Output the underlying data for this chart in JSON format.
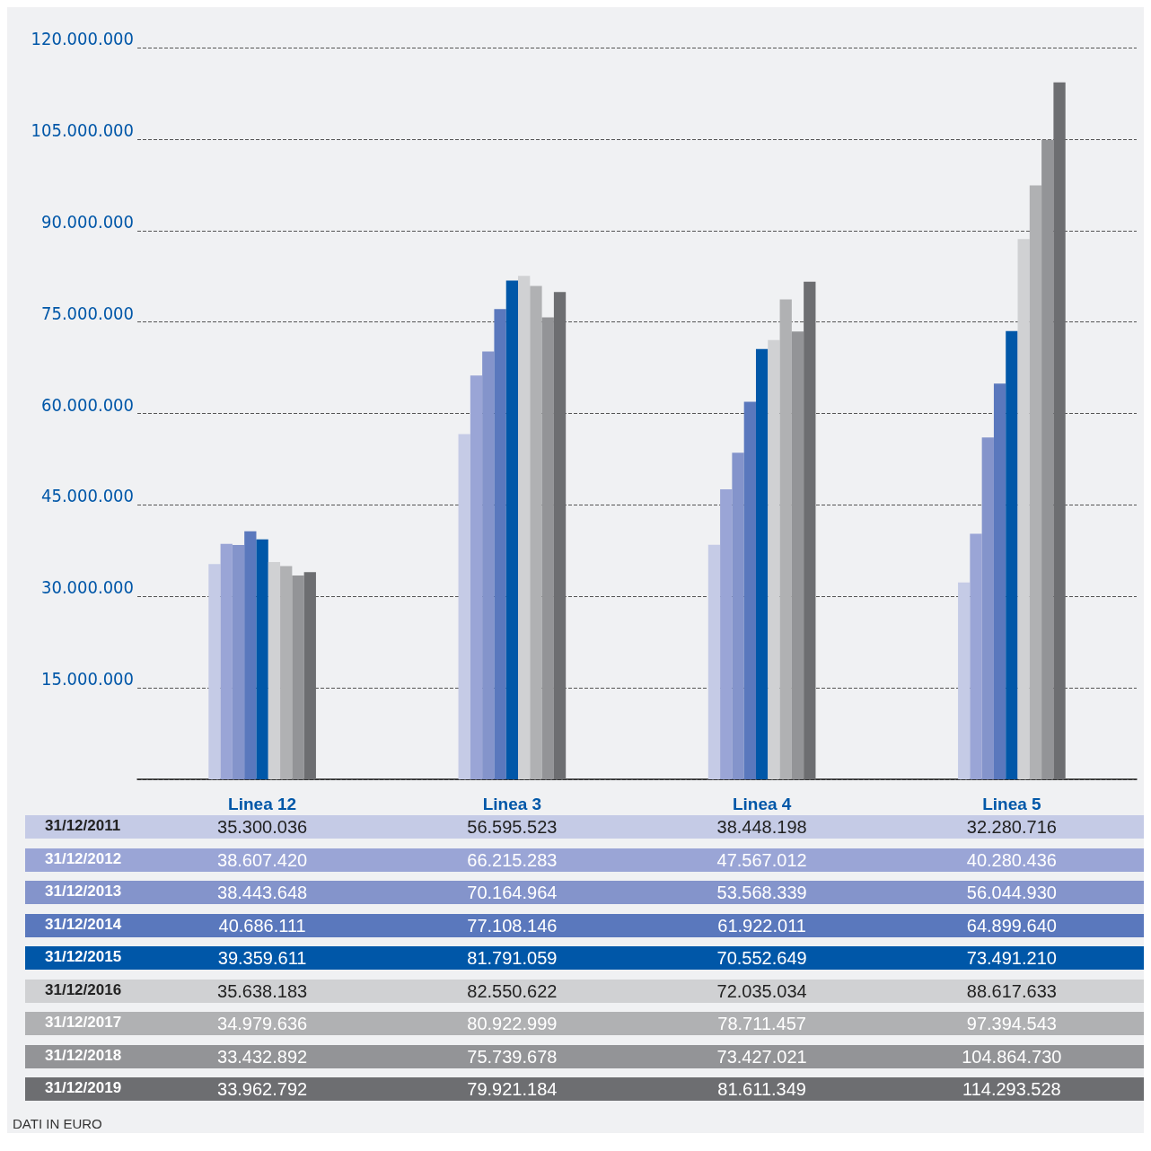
{
  "chart_data": {
    "type": "bar",
    "categories": [
      "Linea 12",
      "Linea 3",
      "Linea 4",
      "Linea 5"
    ],
    "ylim": [
      0,
      120000000
    ],
    "yticks": [
      {
        "value": 0,
        "label": null
      },
      {
        "value": 15000000,
        "label": "15.000.000"
      },
      {
        "value": 30000000,
        "label": "30.000.000"
      },
      {
        "value": 45000000,
        "label": "45.000.000"
      },
      {
        "value": 60000000,
        "label": "60.000.000"
      },
      {
        "value": 75000000,
        "label": "75.000.000"
      },
      {
        "value": 90000000,
        "label": "90.000.000"
      },
      {
        "value": 105000000,
        "label": "105.000.000"
      },
      {
        "value": 120000000,
        "label": "120.000.000"
      }
    ],
    "grid": "y",
    "legend": "bottom",
    "series": [
      {
        "name": "31/12/2011",
        "color": "#c5cbe6",
        "values": [
          35300036,
          56595523,
          38448198,
          32280716
        ],
        "value_labels": [
          "35.300.036",
          "56.595.523",
          "38.448.198",
          "32.280.716"
        ]
      },
      {
        "name": "31/12/2012",
        "color": "#9aa5d6",
        "values": [
          38607420,
          66215283,
          47567012,
          40280436
        ],
        "value_labels": [
          "38.607.420",
          "66.215.283",
          "47.567.012",
          "40.280.436"
        ]
      },
      {
        "name": "31/12/2013",
        "color": "#8494cb",
        "values": [
          38443648,
          70164964,
          53568339,
          56044930
        ],
        "value_labels": [
          "38.443.648",
          "70.164.964",
          "53.568.339",
          "56.044.930"
        ]
      },
      {
        "name": "31/12/2014",
        "color": "#5a78bd",
        "values": [
          40686111,
          77108146,
          61922011,
          64899640
        ],
        "value_labels": [
          "40.686.111",
          "77.108.146",
          "61.922.011",
          "64.899.640"
        ]
      },
      {
        "name": "31/12/2015",
        "color": "#0057a8",
        "values": [
          39359611,
          81791059,
          70552649,
          73491210
        ],
        "value_labels": [
          "39.359.611",
          "81.791.059",
          "70.552.649",
          "73.491.210"
        ]
      },
      {
        "name": "31/12/2016",
        "color": "#d0d1d3",
        "values": [
          35638183,
          82550622,
          72035034,
          88617633
        ],
        "value_labels": [
          "35.638.183",
          "82.550.622",
          "72.035.034",
          "88.617.633"
        ]
      },
      {
        "name": "31/12/2017",
        "color": "#b0b1b3",
        "values": [
          34979636,
          80922999,
          78711457,
          97394543
        ],
        "value_labels": [
          "34.979.636",
          "80.922.999",
          "78.711.457",
          "97.394.543"
        ]
      },
      {
        "name": "31/12/2018",
        "color": "#939497",
        "values": [
          33432892,
          75739678,
          73427021,
          104864730
        ],
        "value_labels": [
          "33.432.892",
          "75.739.678",
          "73.427.021",
          "104.864.730"
        ]
      },
      {
        "name": "31/12/2019",
        "color": "#6d6e71",
        "values": [
          33962792,
          79921184,
          81611349,
          114293528
        ],
        "value_labels": [
          "33.962.792",
          "79.921.184",
          "81.611.349",
          "114.293.528"
        ]
      }
    ],
    "annotations": [
      "DATI IN EURO"
    ]
  }
}
